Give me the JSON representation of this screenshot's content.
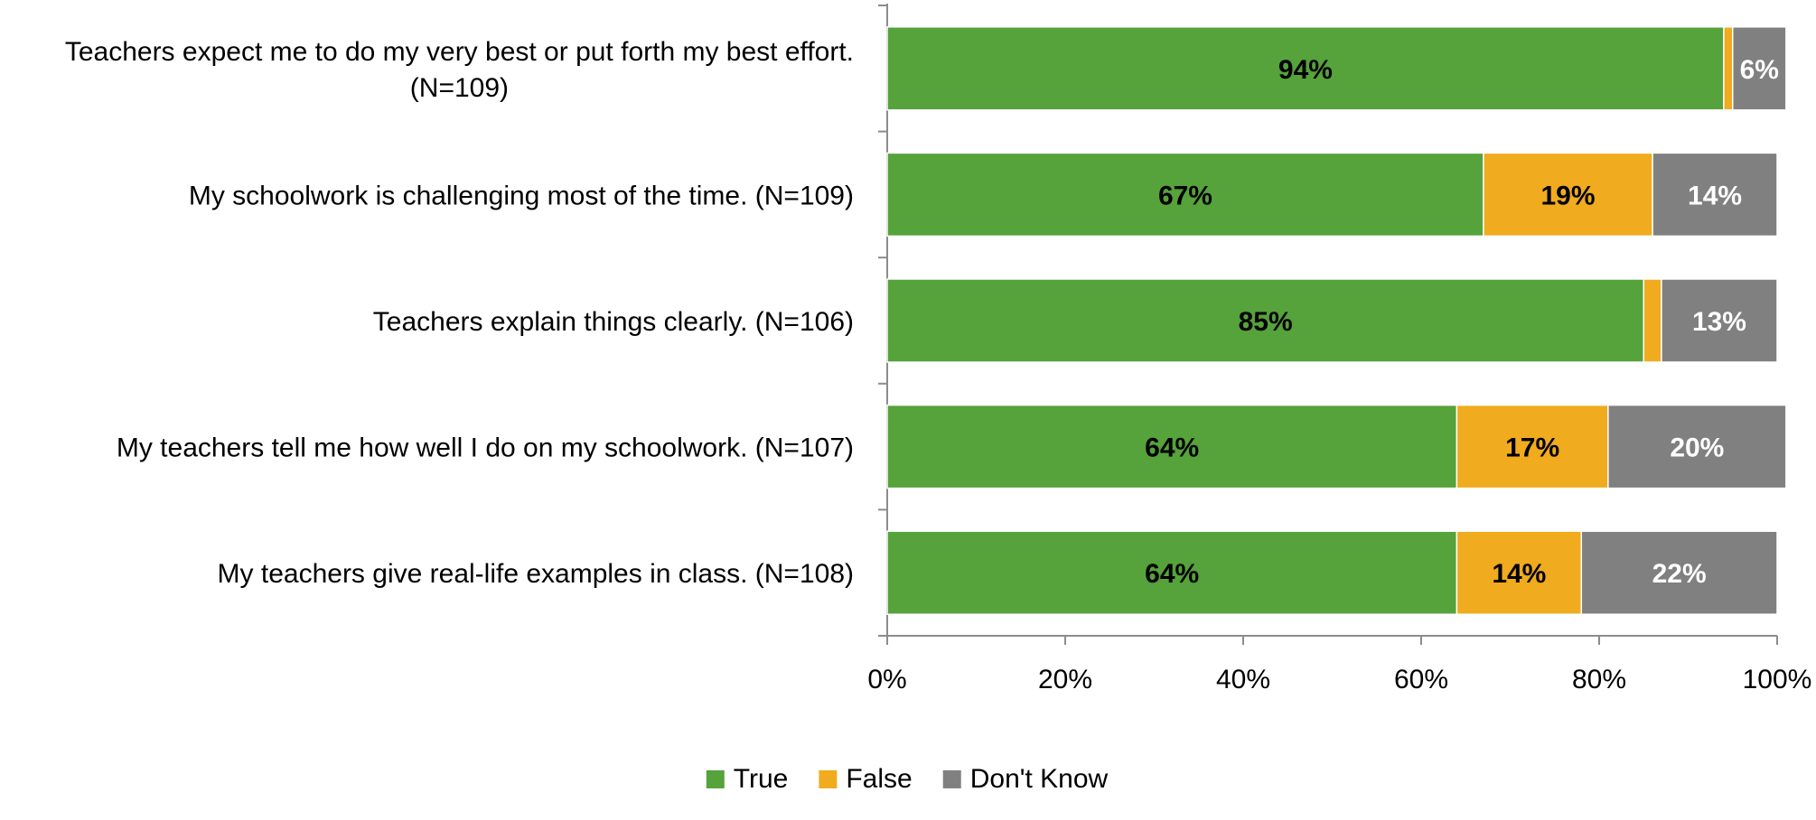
{
  "chart_data": {
    "type": "bar",
    "orientation": "horizontal",
    "stacked": true,
    "categories": [
      "Teachers expect me to do my very best or put forth my best effort. (N=109)",
      "My schoolwork is challenging most of the time. (N=109)",
      "Teachers explain things clearly. (N=106)",
      "My teachers tell me how well I do on my schoolwork. (N=107)",
      "My teachers give real-life examples in class. (N=108)"
    ],
    "series": [
      {
        "name": "True",
        "color": "#56a23b",
        "label_color": "#000000",
        "values": [
          94,
          67,
          85,
          64,
          64
        ],
        "labels": [
          "94%",
          "67%",
          "85%",
          "64%",
          "64%"
        ]
      },
      {
        "name": "False",
        "color": "#f0ab1e",
        "label_color": "#000000",
        "values": [
          1,
          19,
          2,
          17,
          14
        ],
        "labels": [
          "",
          "19%",
          "",
          "17%",
          "14%"
        ]
      },
      {
        "name": "Don't Know",
        "color": "#808080",
        "label_color": "#ffffff",
        "values": [
          6,
          14,
          13,
          20,
          22
        ],
        "labels": [
          "6%",
          "14%",
          "13%",
          "20%",
          "22%"
        ]
      }
    ],
    "xlim": [
      0,
      100
    ],
    "xticks": [
      0,
      20,
      40,
      60,
      80,
      100
    ],
    "xtick_labels": [
      "0%",
      "20%",
      "40%",
      "60%",
      "80%",
      "100%"
    ],
    "grid": false,
    "legend_position": "bottom"
  }
}
